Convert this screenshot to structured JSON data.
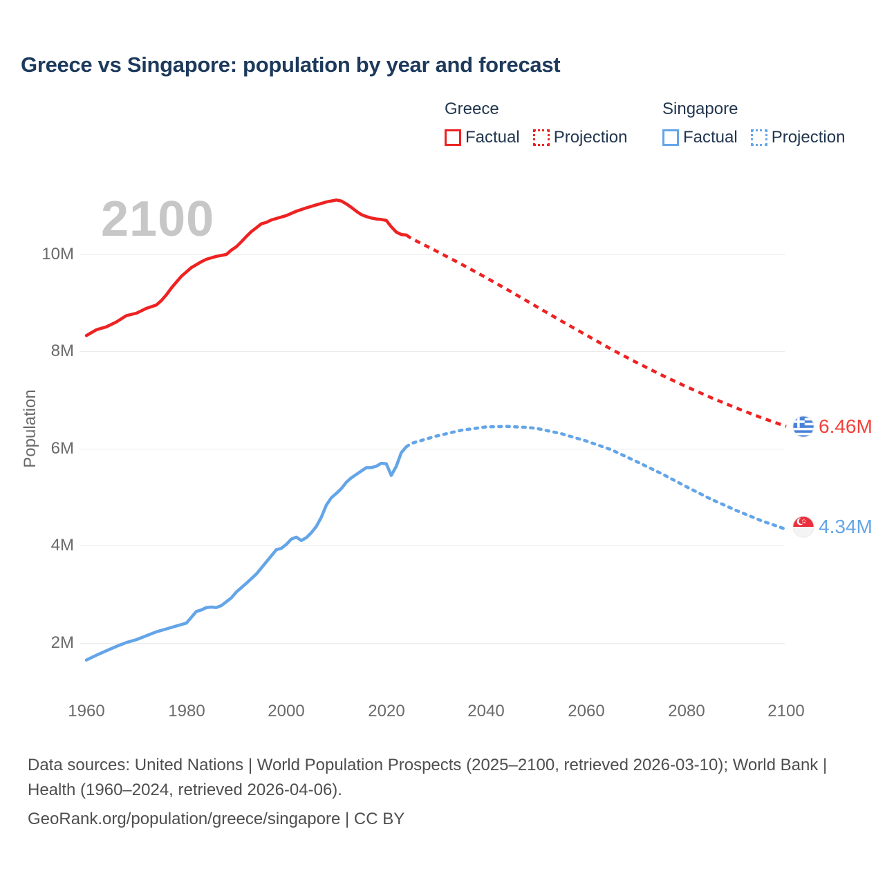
{
  "title": "Greece vs Singapore: population by year and forecast",
  "watermark": "2100",
  "legend": {
    "greece": {
      "header": "Greece",
      "factual": "Factual",
      "projection": "Projection"
    },
    "singapore": {
      "header": "Singapore",
      "factual": "Factual",
      "projection": "Projection"
    }
  },
  "end_labels": {
    "greece": "6.46M",
    "singapore": "4.34M"
  },
  "footer": {
    "sources": "Data sources: United Nations | World Population Prospects (2025–2100, retrieved 2026-03-10); World Bank | Health (1960–2024, retrieved 2026-04-06).",
    "attribution": "GeoRank.org/population/greece/singapore | CC BY"
  },
  "colors": {
    "greece_red": "#ee2222",
    "greece_label_red": "#f2423a",
    "singapore_blue": "#64a5e8",
    "title_navy": "#1d3a5c",
    "tick_gray": "#6a6a6a",
    "watermark_gray": "#c7c7c7",
    "gridline_gray": "#ebebeb",
    "footer_gray": "#4e4e4e"
  },
  "chart_data": {
    "type": "line",
    "title": "Greece vs Singapore: population by year and forecast",
    "xlabel": "",
    "ylabel": "Population",
    "x_ticks": [
      "1960",
      "1980",
      "2000",
      "2020",
      "2040",
      "2060",
      "2080",
      "2100"
    ],
    "y_ticks": [
      "10M",
      "8M",
      "6M",
      "4M",
      "2M"
    ],
    "x_range_years": [
      1960,
      2100
    ],
    "ylim_millions": [
      1.0,
      11.6
    ],
    "grid": "horizontal-only",
    "legend_position": "top-right",
    "units": "millions of people",
    "series": [
      {
        "id": "greece-factual",
        "name": "Greece Factual",
        "style": "solid",
        "color": "greece_red",
        "points": [
          [
            1960,
            8.33
          ],
          [
            1962,
            8.45
          ],
          [
            1964,
            8.51
          ],
          [
            1966,
            8.61
          ],
          [
            1968,
            8.74
          ],
          [
            1970,
            8.79
          ],
          [
            1972,
            8.89
          ],
          [
            1974,
            8.96
          ],
          [
            1975,
            9.05
          ],
          [
            1976,
            9.17
          ],
          [
            1977,
            9.31
          ],
          [
            1978,
            9.43
          ],
          [
            1979,
            9.55
          ],
          [
            1980,
            9.64
          ],
          [
            1981,
            9.73
          ],
          [
            1982,
            9.79
          ],
          [
            1983,
            9.85
          ],
          [
            1984,
            9.9
          ],
          [
            1985,
            9.93
          ],
          [
            1986,
            9.96
          ],
          [
            1988,
            10.0
          ],
          [
            1989,
            10.09
          ],
          [
            1990,
            10.16
          ],
          [
            1991,
            10.26
          ],
          [
            1992,
            10.37
          ],
          [
            1993,
            10.47
          ],
          [
            1994,
            10.55
          ],
          [
            1995,
            10.63
          ],
          [
            1996,
            10.66
          ],
          [
            1997,
            10.71
          ],
          [
            1998,
            10.74
          ],
          [
            2000,
            10.8
          ],
          [
            2002,
            10.89
          ],
          [
            2004,
            10.96
          ],
          [
            2006,
            11.02
          ],
          [
            2008,
            11.08
          ],
          [
            2010,
            11.12
          ],
          [
            2011,
            11.1
          ],
          [
            2012,
            11.04
          ],
          [
            2013,
            10.97
          ],
          [
            2014,
            10.89
          ],
          [
            2015,
            10.82
          ],
          [
            2016,
            10.78
          ],
          [
            2017,
            10.75
          ],
          [
            2018,
            10.73
          ],
          [
            2019,
            10.72
          ],
          [
            2020,
            10.7
          ],
          [
            2021,
            10.57
          ],
          [
            2022,
            10.46
          ],
          [
            2023,
            10.41
          ],
          [
            2024,
            10.4
          ]
        ]
      },
      {
        "id": "greece-projection",
        "name": "Greece Projection",
        "style": "dashed",
        "color": "greece_red",
        "points": [
          [
            2024,
            10.4
          ],
          [
            2025,
            10.33
          ],
          [
            2030,
            10.07
          ],
          [
            2035,
            9.8
          ],
          [
            2040,
            9.52
          ],
          [
            2045,
            9.23
          ],
          [
            2050,
            8.93
          ],
          [
            2055,
            8.63
          ],
          [
            2060,
            8.34
          ],
          [
            2065,
            8.05
          ],
          [
            2070,
            7.78
          ],
          [
            2075,
            7.52
          ],
          [
            2080,
            7.28
          ],
          [
            2085,
            7.05
          ],
          [
            2090,
            6.84
          ],
          [
            2095,
            6.64
          ],
          [
            2100,
            6.46
          ]
        ]
      },
      {
        "id": "singapore-factual",
        "name": "Singapore Factual",
        "style": "solid",
        "color": "singapore_blue",
        "points": [
          [
            1960,
            1.65
          ],
          [
            1962,
            1.75
          ],
          [
            1964,
            1.84
          ],
          [
            1966,
            1.93
          ],
          [
            1968,
            2.01
          ],
          [
            1970,
            2.07
          ],
          [
            1972,
            2.15
          ],
          [
            1974,
            2.23
          ],
          [
            1976,
            2.29
          ],
          [
            1978,
            2.35
          ],
          [
            1980,
            2.41
          ],
          [
            1981,
            2.53
          ],
          [
            1982,
            2.65
          ],
          [
            1983,
            2.68
          ],
          [
            1984,
            2.73
          ],
          [
            1985,
            2.74
          ],
          [
            1986,
            2.73
          ],
          [
            1987,
            2.77
          ],
          [
            1988,
            2.85
          ],
          [
            1989,
            2.93
          ],
          [
            1990,
            3.05
          ],
          [
            1992,
            3.23
          ],
          [
            1994,
            3.42
          ],
          [
            1996,
            3.67
          ],
          [
            1998,
            3.92
          ],
          [
            1999,
            3.95
          ],
          [
            2000,
            4.03
          ],
          [
            2001,
            4.14
          ],
          [
            2002,
            4.18
          ],
          [
            2003,
            4.11
          ],
          [
            2004,
            4.17
          ],
          [
            2005,
            4.27
          ],
          [
            2006,
            4.4
          ],
          [
            2007,
            4.59
          ],
          [
            2008,
            4.84
          ],
          [
            2009,
            4.99
          ],
          [
            2010,
            5.08
          ],
          [
            2011,
            5.18
          ],
          [
            2012,
            5.31
          ],
          [
            2013,
            5.4
          ],
          [
            2014,
            5.47
          ],
          [
            2015,
            5.54
          ],
          [
            2016,
            5.61
          ],
          [
            2017,
            5.61
          ],
          [
            2018,
            5.64
          ],
          [
            2019,
            5.7
          ],
          [
            2020,
            5.69
          ],
          [
            2021,
            5.45
          ],
          [
            2022,
            5.64
          ],
          [
            2023,
            5.92
          ],
          [
            2024,
            6.04
          ]
        ]
      },
      {
        "id": "singapore-projection",
        "name": "Singapore Projection",
        "style": "dashed",
        "color": "singapore_blue",
        "points": [
          [
            2024,
            6.04
          ],
          [
            2025,
            6.11
          ],
          [
            2030,
            6.26
          ],
          [
            2035,
            6.38
          ],
          [
            2040,
            6.45
          ],
          [
            2044,
            6.46
          ],
          [
            2048,
            6.44
          ],
          [
            2050,
            6.42
          ],
          [
            2055,
            6.31
          ],
          [
            2060,
            6.16
          ],
          [
            2065,
            5.98
          ],
          [
            2070,
            5.74
          ],
          [
            2075,
            5.49
          ],
          [
            2080,
            5.22
          ],
          [
            2085,
            4.96
          ],
          [
            2090,
            4.73
          ],
          [
            2095,
            4.52
          ],
          [
            2100,
            4.34
          ]
        ]
      }
    ],
    "end_values": {
      "greece_2100_m": 6.46,
      "singapore_2100_m": 4.34
    }
  }
}
